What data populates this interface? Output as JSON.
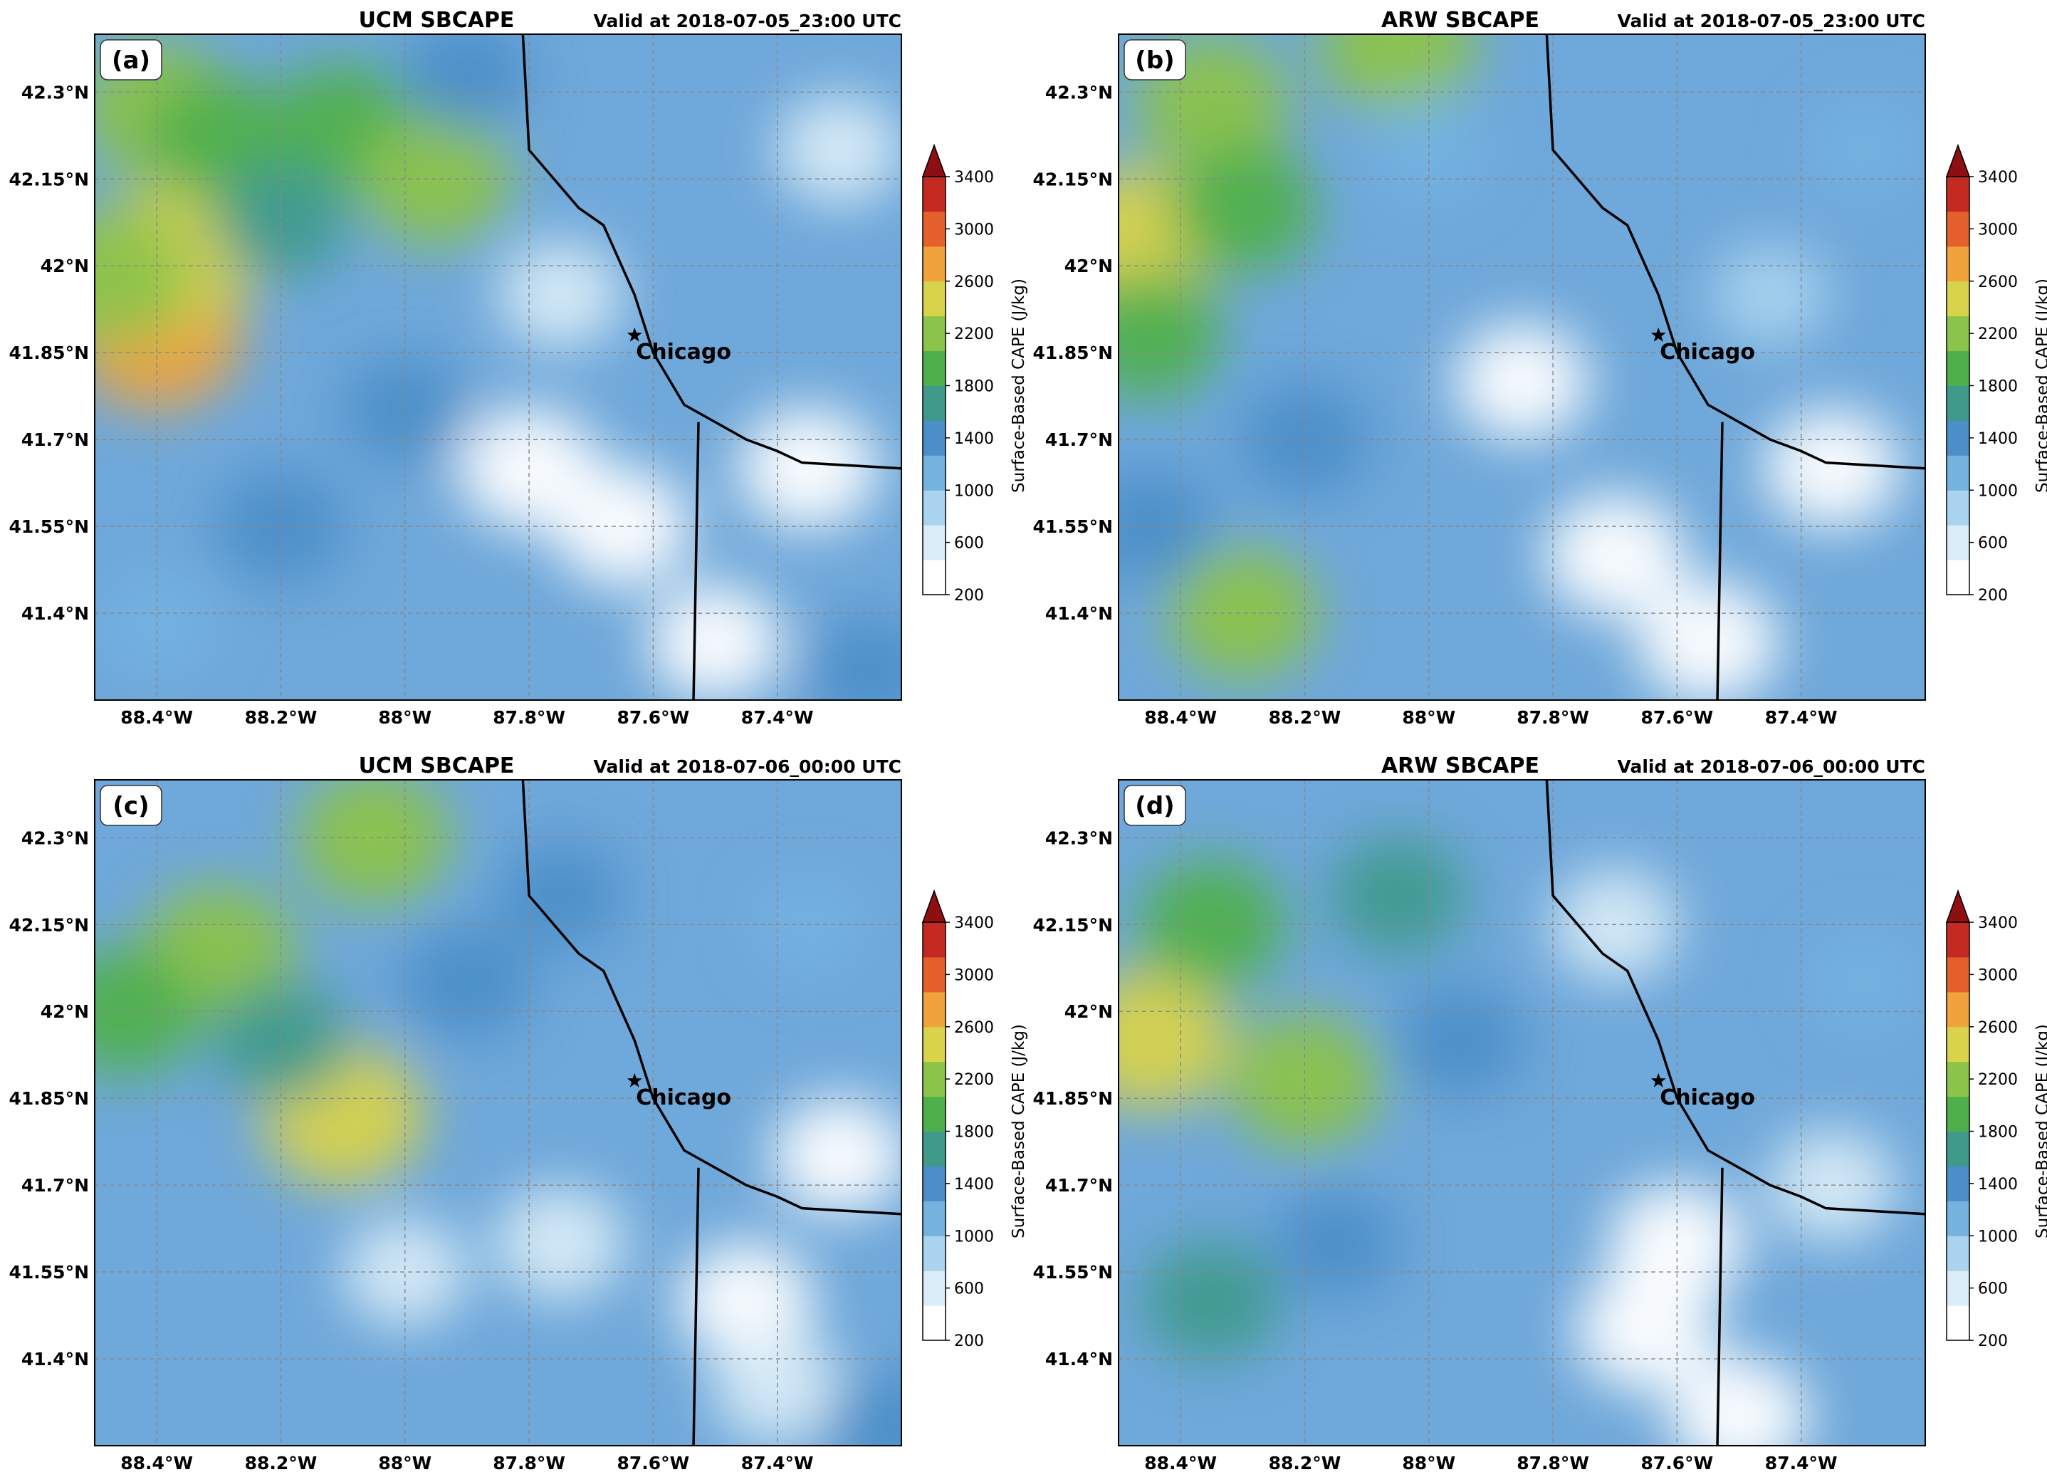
{
  "colorbar": {
    "label": "Surface-Based CAPE (J/kg)",
    "min": 200,
    "max": 3400,
    "ticks": [
      200,
      600,
      1000,
      1400,
      1800,
      2200,
      2600,
      3000,
      3400
    ],
    "tick_labels": [
      "200",
      "600",
      "1000",
      "1400",
      "1800",
      "2200",
      "2600",
      "3000",
      "3400"
    ],
    "extend": "max",
    "colors": [
      "#ffffff",
      "#d9ecf7",
      "#a9d3ee",
      "#74b2e0",
      "#4c8ec8",
      "#3f9a8c",
      "#4fb04b",
      "#8cc34a",
      "#d8d34b",
      "#f0a33c",
      "#e4602c",
      "#c52a22",
      "#8e0f12"
    ]
  },
  "chart_data": [
    {
      "type": "heatmap",
      "panel_label": "(a)",
      "title": "UCM SBCAPE",
      "valid_time": "Valid at 2018-07-05_23:00 UTC",
      "x_tick_labels": [
        "88.4°W",
        "88.2°W",
        "88°W",
        "87.8°W",
        "87.6°W",
        "87.4°W"
      ],
      "x_ticks": [
        -88.4,
        -88.2,
        -88.0,
        -87.8,
        -87.6,
        -87.4
      ],
      "y_tick_labels": [
        "42.3°N",
        "42.15°N",
        "42°N",
        "41.85°N",
        "41.7°N",
        "41.55°N",
        "41.4°N"
      ],
      "y_ticks": [
        42.3,
        42.15,
        42.0,
        41.85,
        41.7,
        41.55,
        41.4
      ],
      "xlim": [
        -88.5,
        -87.2
      ],
      "ylim": [
        41.25,
        42.4
      ],
      "grid": true,
      "annotation": {
        "text": "Chicago",
        "lon": -87.63,
        "lat": 41.88
      },
      "blobs": [
        {
          "lon": -88.4,
          "lat": 41.88,
          "value": 2700
        },
        {
          "lon": -88.37,
          "lat": 42.02,
          "value": 2500
        },
        {
          "lon": -88.47,
          "lat": 41.98,
          "value": 2300
        },
        {
          "lon": -88.4,
          "lat": 42.27,
          "value": 2200
        },
        {
          "lon": -88.3,
          "lat": 42.22,
          "value": 1900
        },
        {
          "lon": -88.1,
          "lat": 42.24,
          "value": 2000
        },
        {
          "lon": -87.95,
          "lat": 42.15,
          "value": 2100
        },
        {
          "lon": -88.2,
          "lat": 42.08,
          "value": 1600
        },
        {
          "lon": -88.2,
          "lat": 41.55,
          "value": 1500
        },
        {
          "lon": -88.0,
          "lat": 41.75,
          "value": 1300
        },
        {
          "lon": -87.9,
          "lat": 42.33,
          "value": 1300
        },
        {
          "lon": -88.4,
          "lat": 41.38,
          "value": 1100
        },
        {
          "lon": -87.8,
          "lat": 41.65,
          "value": 200
        },
        {
          "lon": -87.65,
          "lat": 41.55,
          "value": 300
        },
        {
          "lon": -87.35,
          "lat": 41.65,
          "value": 250
        },
        {
          "lon": -87.5,
          "lat": 41.35,
          "value": 450
        },
        {
          "lon": -87.3,
          "lat": 42.2,
          "value": 650
        },
        {
          "lon": -87.75,
          "lat": 41.95,
          "value": 700
        },
        {
          "lon": -87.25,
          "lat": 41.3,
          "value": 1300
        }
      ]
    },
    {
      "type": "heatmap",
      "panel_label": "(b)",
      "title": "ARW SBCAPE",
      "valid_time": "Valid at 2018-07-05_23:00 UTC",
      "x_tick_labels": [
        "88.4°W",
        "88.2°W",
        "88°W",
        "87.8°W",
        "87.6°W",
        "87.4°W"
      ],
      "x_ticks": [
        -88.4,
        -88.2,
        -88.0,
        -87.8,
        -87.6,
        -87.4
      ],
      "y_tick_labels": [
        "42.3°N",
        "42.15°N",
        "42°N",
        "41.85°N",
        "41.7°N",
        "41.55°N",
        "41.4°N"
      ],
      "y_ticks": [
        42.3,
        42.15,
        42.0,
        41.85,
        41.7,
        41.55,
        41.4
      ],
      "xlim": [
        -88.5,
        -87.2
      ],
      "ylim": [
        41.25,
        42.4
      ],
      "grid": true,
      "annotation": {
        "text": "Chicago",
        "lon": -87.63,
        "lat": 41.88
      },
      "blobs": [
        {
          "lon": -88.47,
          "lat": 42.05,
          "value": 2400
        },
        {
          "lon": -88.35,
          "lat": 42.28,
          "value": 2200
        },
        {
          "lon": -88.3,
          "lat": 42.1,
          "value": 2000
        },
        {
          "lon": -88.05,
          "lat": 42.38,
          "value": 2300
        },
        {
          "lon": -88.45,
          "lat": 41.88,
          "value": 1900
        },
        {
          "lon": -88.3,
          "lat": 41.4,
          "value": 2100
        },
        {
          "lon": -88.2,
          "lat": 41.7,
          "value": 1500
        },
        {
          "lon": -88.0,
          "lat": 42.2,
          "value": 1200
        },
        {
          "lon": -88.45,
          "lat": 41.55,
          "value": 1500
        },
        {
          "lon": -87.7,
          "lat": 41.5,
          "value": 200
        },
        {
          "lon": -87.55,
          "lat": 41.35,
          "value": 200
        },
        {
          "lon": -87.85,
          "lat": 41.8,
          "value": 400
        },
        {
          "lon": -87.35,
          "lat": 41.65,
          "value": 350
        },
        {
          "lon": -87.3,
          "lat": 42.2,
          "value": 1000
        },
        {
          "lon": -87.45,
          "lat": 41.95,
          "value": 900
        }
      ]
    },
    {
      "type": "heatmap",
      "panel_label": "(c)",
      "title": "UCM SBCAPE",
      "valid_time": "Valid at 2018-07-06_00:00 UTC",
      "x_tick_labels": [
        "88.4°W",
        "88.2°W",
        "88°W",
        "87.8°W",
        "87.6°W",
        "87.4°W"
      ],
      "x_ticks": [
        -88.4,
        -88.2,
        -88.0,
        -87.8,
        -87.6,
        -87.4
      ],
      "y_tick_labels": [
        "42.3°N",
        "42.15°N",
        "42°N",
        "41.85°N",
        "41.7°N",
        "41.55°N",
        "41.4°N"
      ],
      "y_ticks": [
        42.3,
        42.15,
        42.0,
        41.85,
        41.7,
        41.55,
        41.4
      ],
      "xlim": [
        -88.5,
        -87.2
      ],
      "ylim": [
        41.25,
        42.4
      ],
      "grid": true,
      "annotation": {
        "text": "Chicago",
        "lon": -87.63,
        "lat": 41.88
      },
      "blobs": [
        {
          "lon": -88.05,
          "lat": 42.3,
          "value": 2200
        },
        {
          "lon": -88.3,
          "lat": 42.1,
          "value": 2300
        },
        {
          "lon": -88.1,
          "lat": 41.82,
          "value": 2500
        },
        {
          "lon": -88.45,
          "lat": 42.0,
          "value": 2000
        },
        {
          "lon": -88.2,
          "lat": 41.95,
          "value": 1700
        },
        {
          "lon": -87.9,
          "lat": 42.05,
          "value": 1500
        },
        {
          "lon": -87.75,
          "lat": 42.2,
          "value": 1300
        },
        {
          "lon": -88.0,
          "lat": 41.55,
          "value": 700
        },
        {
          "lon": -87.75,
          "lat": 41.6,
          "value": 500
        },
        {
          "lon": -87.45,
          "lat": 41.5,
          "value": 350
        },
        {
          "lon": -87.3,
          "lat": 41.75,
          "value": 400
        },
        {
          "lon": -87.4,
          "lat": 41.35,
          "value": 550
        },
        {
          "lon": -87.22,
          "lat": 41.28,
          "value": 1500
        },
        {
          "lon": -87.35,
          "lat": 42.15,
          "value": 1000
        }
      ]
    },
    {
      "type": "heatmap",
      "panel_label": "(d)",
      "title": "ARW SBCAPE",
      "valid_time": "Valid at 2018-07-06_00:00 UTC",
      "x_tick_labels": [
        "88.4°W",
        "88.2°W",
        "88°W",
        "87.8°W",
        "87.6°W",
        "87.4°W"
      ],
      "x_ticks": [
        -88.4,
        -88.2,
        -88.0,
        -87.8,
        -87.6,
        -87.4
      ],
      "y_tick_labels": [
        "42.3°N",
        "42.15°N",
        "42°N",
        "41.85°N",
        "41.7°N",
        "41.55°N",
        "41.4°N"
      ],
      "y_ticks": [
        42.3,
        42.15,
        42.0,
        41.85,
        41.7,
        41.55,
        41.4
      ],
      "xlim": [
        -88.5,
        -87.2
      ],
      "ylim": [
        41.25,
        42.4
      ],
      "grid": true,
      "annotation": {
        "text": "Chicago",
        "lon": -87.63,
        "lat": 41.88
      },
      "blobs": [
        {
          "lon": -88.45,
          "lat": 41.95,
          "value": 2400
        },
        {
          "lon": -88.2,
          "lat": 41.88,
          "value": 2200
        },
        {
          "lon": -88.35,
          "lat": 42.15,
          "value": 2000
        },
        {
          "lon": -88.05,
          "lat": 42.2,
          "value": 1600
        },
        {
          "lon": -87.95,
          "lat": 41.95,
          "value": 1400
        },
        {
          "lon": -88.35,
          "lat": 41.5,
          "value": 1700
        },
        {
          "lon": -88.15,
          "lat": 41.6,
          "value": 1300
        },
        {
          "lon": -87.65,
          "lat": 41.45,
          "value": 200
        },
        {
          "lon": -87.6,
          "lat": 41.6,
          "value": 300
        },
        {
          "lon": -87.5,
          "lat": 41.3,
          "value": 250
        },
        {
          "lon": -87.35,
          "lat": 41.7,
          "value": 600
        },
        {
          "lon": -87.3,
          "lat": 42.05,
          "value": 1000
        },
        {
          "lon": -87.7,
          "lat": 42.15,
          "value": 600
        }
      ]
    }
  ]
}
